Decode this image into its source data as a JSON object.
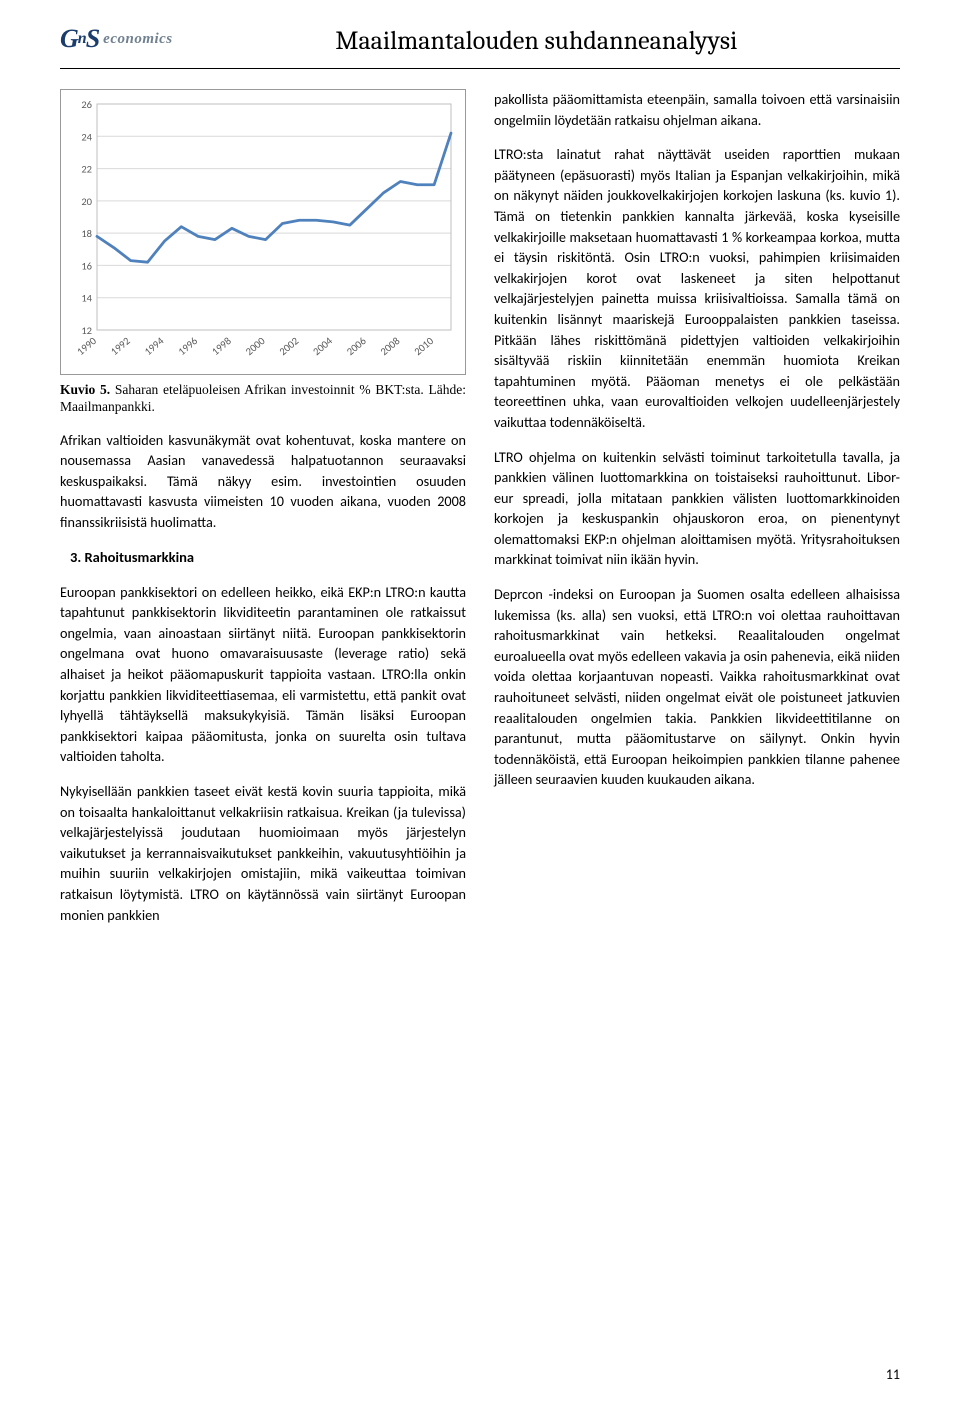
{
  "header": {
    "logo_main": "G",
    "logo_sup": "n",
    "logo_s": "S",
    "logo_sub": "economics",
    "title": "Maailmantalouden suhdanneanalyysi"
  },
  "chart": {
    "type": "line",
    "x_labels": [
      "1990",
      "1992",
      "1994",
      "1996",
      "1998",
      "2000",
      "2002",
      "2004",
      "2006",
      "2008",
      "2010"
    ],
    "y_ticks": [
      12,
      14,
      16,
      18,
      20,
      22,
      24,
      26
    ],
    "ylim": [
      12,
      26
    ],
    "x_values": [
      1990,
      1991,
      1992,
      1993,
      1994,
      1995,
      1996,
      1997,
      1998,
      1999,
      2000,
      2001,
      2002,
      2003,
      2004,
      2005,
      2006,
      2007,
      2008,
      2009,
      2010,
      2011
    ],
    "y_values": [
      17.8,
      17.1,
      16.3,
      16.2,
      17.5,
      18.4,
      17.8,
      17.6,
      18.3,
      17.8,
      17.6,
      18.6,
      18.8,
      18.8,
      18.7,
      18.5,
      19.5,
      20.5,
      21.2,
      21.0,
      21.0,
      24.2
    ],
    "line_color": "#4f81bd",
    "line_width": 2.8,
    "grid_color": "#d9d9d9",
    "border_color": "#bfbfbf",
    "tick_color": "#595959",
    "background_color": "#ffffff"
  },
  "caption": {
    "bold": "Kuvio 5.",
    "text": " Saharan eteläpuoleisen Afrikan investoinnit % BKT:sta. Lähde: Maailmanpankki."
  },
  "left": {
    "p1": "Afrikan valtioiden kasvunäkymät ovat kohentuvat, koska mantere on nousemassa Aasian vanavedessä halpatuotannon seuraavaksi keskuspaikaksi. Tämä näkyy esim. investointien osuuden huomattavasti kasvusta viimeisten 10 vuoden aikana, vuoden 2008 finanssikriisistä huolimatta.",
    "heading": "3.  Rahoitusmarkkina",
    "p2": "Euroopan pankkisektori on edelleen heikko, eikä EKP:n LTRO:n kautta tapahtunut pankkisektorin likviditeetin parantaminen ole ratkaissut ongelmia, vaan ainoastaan siirtänyt niitä. Euroopan pankkisektorin ongelmana ovat huono omavaraisuusaste (leverage ratio) sekä alhaiset ja heikot pääomapuskurit tappioita vastaan. LTRO:lla onkin korjattu pankkien likviditeettiasemaa, eli varmistettu, että pankit ovat lyhyellä tähtäyksellä maksukykyisiä. Tämän lisäksi Euroopan pankkisektori kaipaa pääomitusta, jonka on suurelta osin tultava valtioiden taholta.",
    "p3": "Nykyisellään pankkien taseet eivät kestä kovin suuria tappioita, mikä on toisaalta hankaloittanut velkakriisin ratkaisua. Kreikan (ja tulevissa) velkajärjestelyissä joudutaan huomioimaan myös järjestelyn vaikutukset ja kerrannaisvaikutukset pankkeihin, vakuutusyhtiöihin ja muihin suuriin velkakirjojen omistajiin, mikä vaikeuttaa toimivan ratkaisun löytymistä. LTRO on käytännössä vain siirtänyt Euroopan monien pankkien"
  },
  "right": {
    "p1": "pakollista pääomittamista eteenpäin, samalla toivoen että varsinaisiin ongelmiin löydetään ratkaisu ohjelman aikana.",
    "p2": "LTRO:sta lainatut rahat näyttävät useiden raporttien mukaan päätyneen (epäsuorasti) myös Italian ja Espanjan velkakirjoihin, mikä on näkynyt näiden joukkovelkakirjojen korkojen laskuna (ks. kuvio 1). Tämä on tietenkin pankkien kannalta järkevää, koska kyseisille velkakirjoille maksetaan huomattavasti 1 % korkeampaa korkoa, mutta ei täysin riskitöntä. Osin LTRO:n vuoksi, pahimpien kriisimaiden velkakirjojen korot ovat laskeneet ja siten helpottanut velkajärjestelyjen painetta muissa kriisivaltioissa. Samalla tämä on kuitenkin lisännyt maariskejä Eurooppalaisten pankkien taseissa. Pitkään lähes riskittömänä pidettyjen valtioiden velkakirjoihin sisältyvää riskiin kiinnitetään enemmän huomiota Kreikan tapahtuminen myötä. Pääoman menetys ei ole pelkästään teoreettinen uhka, vaan eurovaltioiden velkojen uudelleenjärjestely vaikuttaa todennäköiseltä.",
    "p3": "LTRO ohjelma on kuitenkin selvästi toiminut tarkoitetulla tavalla, ja pankkien välinen luottomarkkina on toistaiseksi rauhoittunut. Libor-eur spreadi, jolla mitataan pankkien välisten luottomarkkinoiden korkojen ja keskuspankin ohjauskoron eroa, on pienentynyt olemattomaksi EKP:n ohjelman aloittamisen myötä. Yritysrahoituksen markkinat toimivat niin ikään hyvin.",
    "p4": "Deprcon -indeksi on Euroopan ja Suomen osalta edelleen alhaisissa lukemissa (ks. alla) sen vuoksi, että LTRO:n voi olettaa rauhoittavan rahoitusmarkkinat vain hetkeksi. Reaalitalouden ongelmat euroalueella ovat myös edelleen vakavia ja osin pahenevia, eikä niiden voida olettaa korjaantuvan nopeasti. Vaikka rahoitusmarkkinat ovat rauhoituneet selvästi, niiden ongelmat eivät ole poistuneet jatkuvien reaalitalouden ongelmien takia. Pankkien likvideettitilanne on parantunut, mutta pääomitustarve on säilynyt. Onkin hyvin todennäköistä, että Euroopan heikoimpien pankkien tilanne pahenee jälleen seuraavien kuuden kuukauden aikana."
  },
  "page_number": "11"
}
